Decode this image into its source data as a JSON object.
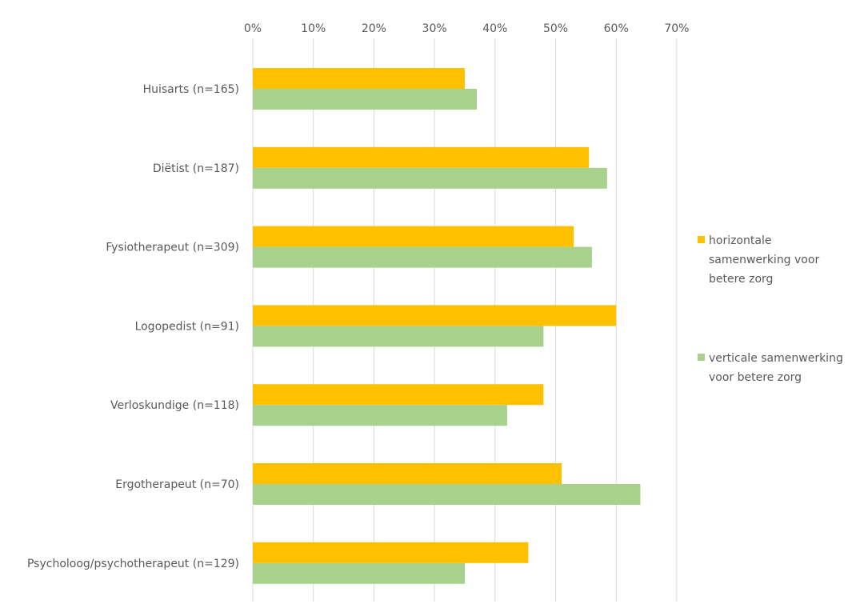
{
  "chart_data": {
    "type": "bar",
    "orientation": "horizontal",
    "categories": [
      "Huisarts (n=165)",
      "Diëtist (n=187)",
      "Fysiotherapeut (n=309)",
      "Logopedist (n=91)",
      "Verloskundige (n=118)",
      "Ergotherapeut (n=70)",
      "Psycholoog/psychotherapeut (n=129)"
    ],
    "series": [
      {
        "name": "horizontale samenwerking voor betere zorg",
        "color": "#FFC000",
        "values": [
          35,
          55.5,
          53,
          60,
          48,
          51,
          45.5
        ]
      },
      {
        "name": "verticale samenwerking voor betere zorg",
        "color": "#A9D18E",
        "values": [
          37,
          58.5,
          56,
          48,
          42,
          64,
          35
        ]
      }
    ],
    "x_ticks": [
      "0%",
      "10%",
      "20%",
      "30%",
      "40%",
      "50%",
      "60%",
      "70%"
    ],
    "xlim": [
      0,
      70
    ],
    "grid": true,
    "grid_color": "#D9D9D9",
    "legend_position": "right",
    "title": "",
    "xlabel": "",
    "ylabel": ""
  }
}
